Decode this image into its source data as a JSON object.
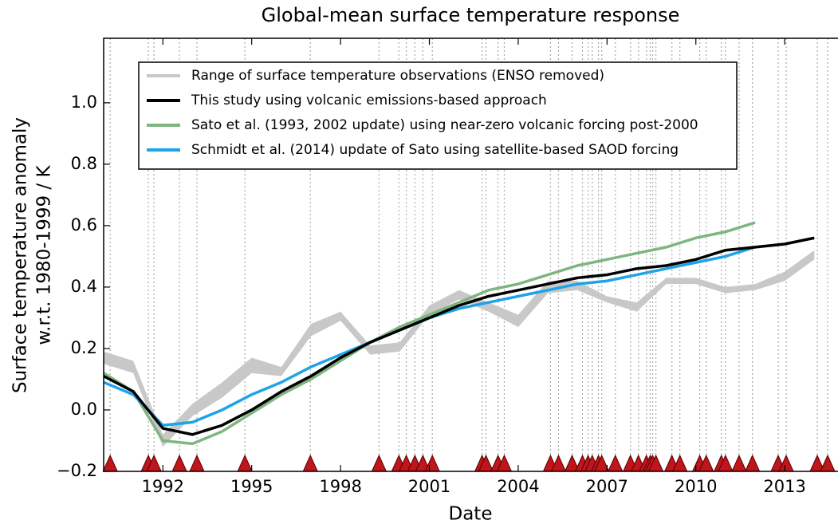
{
  "chart_data": {
    "type": "line",
    "title": "Global-mean surface temperature response",
    "xlabel": "Date",
    "ylabel": [
      "Surface temperature anomaly",
      "w.r.t. 1980-1999 / K"
    ],
    "xlim": [
      1990,
      2014.8
    ],
    "ylim": [
      -0.2,
      1.21
    ],
    "xticks": [
      1992,
      1995,
      1998,
      2001,
      2004,
      2007,
      2010,
      2013
    ],
    "yticks": [
      {
        "value": -0.2,
        "label": "−0.2"
      },
      {
        "value": 0,
        "label": "0.0"
      },
      {
        "value": 0.2,
        "label": "0.2"
      },
      {
        "value": 0.4,
        "label": "0.4"
      },
      {
        "value": 0.6,
        "label": "0.6"
      },
      {
        "value": 0.8,
        "label": "0.8"
      },
      {
        "value": 1,
        "label": "1.0"
      }
    ],
    "band": {
      "name": "Range of surface temperature observations (ENSO removed)",
      "color": "#c8c8c8",
      "x": [
        1990,
        1991,
        1992,
        1993,
        1994,
        1995,
        1996,
        1997,
        1998,
        1999,
        2000,
        2001,
        2002,
        2003,
        2004,
        2005,
        2006,
        2007,
        2008,
        2009,
        2010,
        2011,
        2012,
        2013,
        2014
      ],
      "lower": [
        0.15,
        0.12,
        -0.12,
        -0.02,
        0.04,
        0.12,
        0.11,
        0.24,
        0.29,
        0.18,
        0.19,
        0.31,
        0.36,
        0.32,
        0.27,
        0.38,
        0.39,
        0.35,
        0.32,
        0.41,
        0.41,
        0.38,
        0.39,
        0.42,
        0.49
      ],
      "upper": [
        0.19,
        0.16,
        -0.08,
        0.02,
        0.09,
        0.17,
        0.14,
        0.28,
        0.32,
        0.21,
        0.22,
        0.34,
        0.39,
        0.35,
        0.31,
        0.42,
        0.42,
        0.37,
        0.35,
        0.43,
        0.43,
        0.4,
        0.41,
        0.45,
        0.52
      ]
    },
    "x": [
      1990,
      1991,
      1992,
      1993,
      1994,
      1995,
      1996,
      1997,
      1998,
      1999,
      2000,
      2001,
      2002,
      2003,
      2004,
      2005,
      2006,
      2007,
      2008,
      2009,
      2010,
      2011,
      2012,
      2013,
      2014
    ],
    "series": [
      {
        "name": "This study using volcanic emissions-based approach",
        "color": "#000000",
        "values": [
          0.11,
          0.06,
          -0.06,
          -0.08,
          -0.05,
          0.0,
          0.06,
          0.11,
          0.17,
          0.22,
          0.26,
          0.3,
          0.34,
          0.37,
          0.39,
          0.41,
          0.43,
          0.44,
          0.46,
          0.47,
          0.49,
          0.52,
          0.53,
          0.54,
          0.56
        ]
      },
      {
        "name": "Sato et al. (1993, 2002 update) using near-zero volcanic forcing post-2000",
        "color": "#7fb57f",
        "values": [
          0.12,
          0.06,
          -0.1,
          -0.11,
          -0.07,
          -0.01,
          0.05,
          0.1,
          0.16,
          0.22,
          0.27,
          0.31,
          0.35,
          0.39,
          0.41,
          0.44,
          0.47,
          0.49,
          0.51,
          0.53,
          0.56,
          0.58,
          0.61,
          null,
          null
        ]
      },
      {
        "name": "Schmidt et al. (2014) update of Sato using satellite-based SAOD forcing",
        "color": "#1ea3e8",
        "values": [
          0.09,
          0.05,
          -0.05,
          -0.04,
          0.0,
          0.05,
          0.09,
          0.14,
          0.18,
          0.22,
          0.26,
          0.3,
          0.33,
          0.35,
          0.37,
          0.39,
          0.41,
          0.42,
          0.44,
          0.46,
          0.48,
          0.5,
          0.53,
          null,
          null
        ]
      }
    ],
    "eruptions": {
      "color": "#c0151b",
      "x": [
        1990.22,
        1991.51,
        1991.7,
        1992.56,
        1993.15,
        1994.77,
        1996.98,
        1999.3,
        1999.97,
        2000.22,
        2000.51,
        2000.78,
        2001.1,
        2002.78,
        2002.91,
        2003.32,
        2003.53,
        2005.09,
        2005.36,
        2005.82,
        2006.17,
        2006.36,
        2006.5,
        2006.71,
        2006.82,
        2007.28,
        2007.79,
        2008.06,
        2008.33,
        2008.46,
        2008.54,
        2008.65,
        2009.19,
        2009.46,
        2010.13,
        2010.35,
        2010.86,
        2011.0,
        2011.46,
        2011.91,
        2012.78,
        2013.05,
        2014.1,
        2014.45
      ]
    }
  }
}
